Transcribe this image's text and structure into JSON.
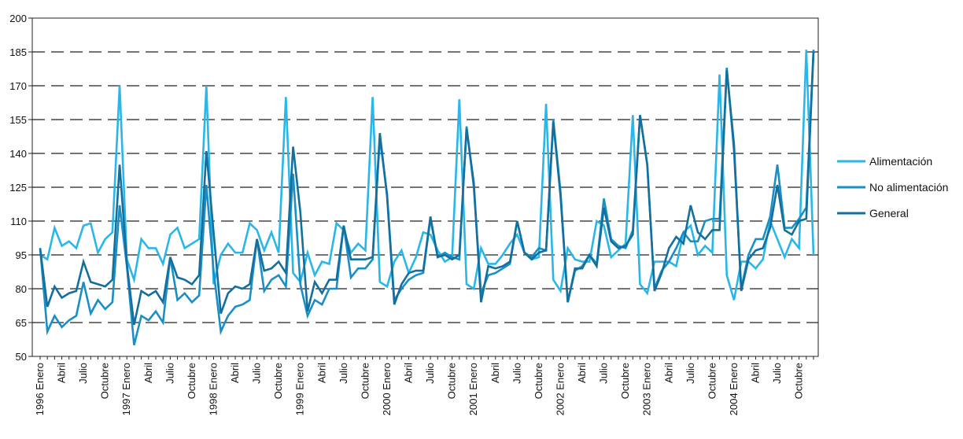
{
  "chart_data": {
    "type": "line",
    "title": "",
    "xlabel": "",
    "ylabel": "",
    "ylim": [
      50,
      200
    ],
    "yticks": [
      50,
      65,
      80,
      95,
      110,
      125,
      140,
      155,
      170,
      185,
      200
    ],
    "grid": "horizontal-dashed",
    "legend_position": "right",
    "x_tick_labels": [
      "1996 Enero",
      "Abril",
      "Julio",
      "Octubre",
      "1997 Enero",
      "Abril",
      "Julio",
      "Octubre",
      "1998 Enero",
      "Abril",
      "Julio",
      "Octubre",
      "1999 Enero",
      "Abril",
      "Julio",
      "Octubre",
      "2000 Enero",
      "Abril",
      "Julio",
      "Octubre",
      "2001 Enero",
      "Abril",
      "Julio",
      "Octubre",
      "2002 Enero",
      "Abril",
      "Julio",
      "Octubre",
      "2003 Enero",
      "Abril",
      "Julio",
      "Octubre",
      "2004 Enero",
      "Abril",
      "Julio",
      "Octubre"
    ],
    "series": [
      {
        "name": "Alimentación",
        "color": "#29b6e8",
        "values": [
          95,
          93,
          107,
          99,
          101,
          98,
          108,
          109,
          96,
          102,
          105,
          170,
          93,
          84,
          102,
          98,
          98,
          91,
          104,
          107,
          98,
          100,
          102,
          170,
          82,
          95,
          100,
          96,
          96,
          109,
          106,
          97,
          105,
          96,
          165,
          87,
          83,
          96,
          86,
          92,
          91,
          109,
          106,
          96,
          100,
          97,
          165,
          83,
          81,
          92,
          97,
          87,
          94,
          105,
          104,
          97,
          92,
          94,
          164,
          82,
          80,
          98,
          91,
          91,
          95,
          100,
          104,
          96,
          93,
          94,
          162,
          84,
          79,
          98,
          93,
          92,
          92,
          110,
          108,
          94,
          97,
          100,
          157,
          82,
          78,
          92,
          92,
          92,
          90,
          105,
          108,
          95,
          99,
          96,
          175,
          86,
          75,
          92,
          92,
          89,
          93,
          110,
          102,
          94,
          102,
          98,
          186,
          95
        ]
      },
      {
        "name": "No alimentación",
        "color": "#1a8fc6",
        "values": [
          98,
          61,
          68,
          63,
          66,
          68,
          83,
          69,
          75,
          71,
          74,
          117,
          90,
          55,
          68,
          66,
          70,
          65,
          94,
          75,
          78,
          74,
          77,
          126,
          88,
          61,
          68,
          72,
          73,
          75,
          102,
          79,
          84,
          86,
          81,
          131,
          82,
          68,
          75,
          73,
          80,
          80,
          108,
          85,
          89,
          89,
          93,
          147,
          122,
          75,
          80,
          84,
          86,
          87,
          111,
          94,
          96,
          94,
          93,
          152,
          125,
          78,
          86,
          87,
          89,
          91,
          110,
          96,
          94,
          98,
          97,
          155,
          123,
          74,
          88,
          90,
          95,
          91,
          120,
          102,
          99,
          98,
          106,
          157,
          135,
          80,
          88,
          92,
          98,
          105,
          101,
          101,
          110,
          111,
          111,
          178,
          141,
          80,
          95,
          102,
          102,
          112,
          135,
          107,
          107,
          111,
          116,
          186
        ]
      },
      {
        "name": "General",
        "color": "#136f9e",
        "values": [
          98,
          72,
          81,
          76,
          78,
          79,
          92,
          83,
          82,
          81,
          84,
          135,
          91,
          64,
          79,
          77,
          79,
          74,
          94,
          85,
          84,
          82,
          86,
          141,
          105,
          69,
          78,
          81,
          80,
          82,
          102,
          88,
          89,
          92,
          87,
          143,
          114,
          70,
          83,
          78,
          84,
          84,
          108,
          93,
          93,
          93,
          94,
          149,
          121,
          73,
          82,
          87,
          88,
          88,
          112,
          94,
          95,
          93,
          95,
          151,
          127,
          74,
          90,
          89,
          90,
          92,
          110,
          96,
          93,
          96,
          97,
          154,
          121,
          74,
          89,
          89,
          95,
          90,
          116,
          101,
          98,
          99,
          104,
          157,
          135,
          79,
          87,
          98,
          103,
          100,
          117,
          105,
          102,
          106,
          106,
          177,
          144,
          79,
          93,
          97,
          98,
          107,
          126,
          106,
          104,
          110,
          111,
          185
        ]
      }
    ]
  }
}
